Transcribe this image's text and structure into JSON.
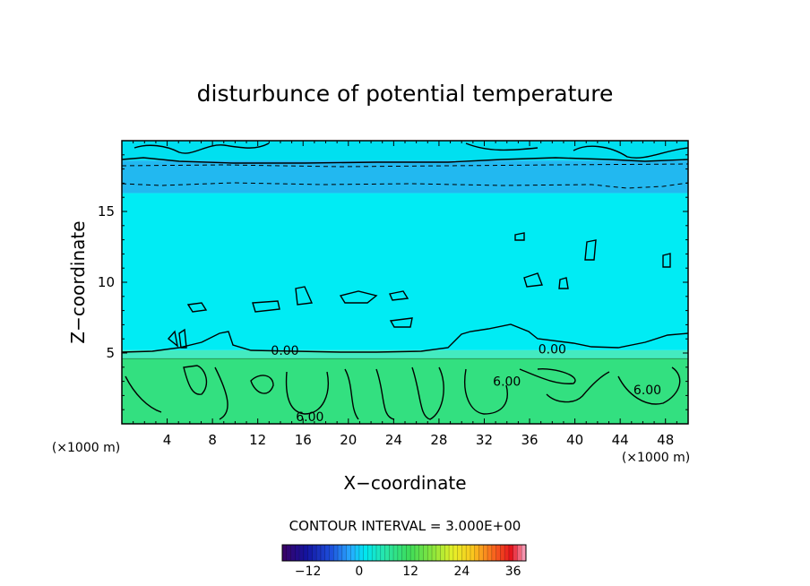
{
  "chart_data": {
    "type": "heatmap",
    "title": "disturbunce of potential temperature",
    "xlabel": "X−coordinate",
    "ylabel": "Z−coordinate",
    "x_unit": "(×1000 m)",
    "z_unit": "(×1000 m)",
    "xlim": [
      0,
      50
    ],
    "ylim": [
      0,
      20
    ],
    "x_ticks": [
      4,
      8,
      12,
      16,
      20,
      24,
      28,
      32,
      36,
      40,
      44,
      48
    ],
    "y_ticks": [
      5,
      10,
      15
    ],
    "contour_interval_text": "CONTOUR INTERVAL = 3.000E+00",
    "contour_labels": [
      {
        "text": "0.00",
        "x": 14.4,
        "z": 5.2
      },
      {
        "text": "0.00",
        "x": 38.0,
        "z": 5.3
      },
      {
        "text": "6.00",
        "x": 34.0,
        "z": 3.0
      },
      {
        "text": "6.00",
        "x": 16.6,
        "z": 0.5
      },
      {
        "text": "6.00",
        "x": 46.4,
        "z": 2.4
      }
    ],
    "field_bands": [
      {
        "z_range": [
          0,
          4.6
        ],
        "level": 6,
        "color": "#33e080"
      },
      {
        "z_range": [
          4.6,
          5.2
        ],
        "level": 3,
        "color": "#44eac0"
      },
      {
        "z_range": [
          5.2,
          16.3
        ],
        "level": 0,
        "color": "#00ecf4"
      },
      {
        "z_range": [
          16.3,
          18.6
        ],
        "level": -3,
        "color": "#22b8f0"
      },
      {
        "z_range": [
          18.6,
          20
        ],
        "level": 0,
        "color": "#00e0f0"
      }
    ],
    "colorbar": {
      "min": -18,
      "max": 39,
      "tick_labels": [
        "−12",
        "0",
        "12",
        "24",
        "36"
      ],
      "tick_values": [
        -12,
        0,
        12,
        24,
        36
      ]
    }
  }
}
